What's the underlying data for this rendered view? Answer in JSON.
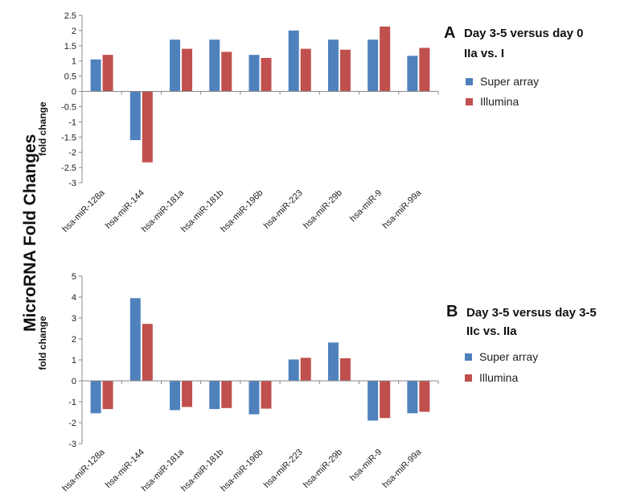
{
  "figure": {
    "side_title": "MicroRNA  Fold Changes"
  },
  "colors": {
    "series_a": "#4F81BD",
    "series_b": "#C0504D"
  },
  "chart_data": [
    {
      "type": "bar",
      "panel": "A",
      "title_line1": "Day 3-5 versus day 0",
      "title_line2": "IIa vs. I",
      "ylabel": "fold change",
      "xlabel": "",
      "categories": [
        "hsa-miR-128a",
        "hsa-miR-144",
        "hsa-miR-181a",
        "hsa-miR-181b",
        "hsa-miR-196b",
        "hsa-miR-223",
        "hsa-miR-29b",
        "hsa-miR-9",
        "hsa-miR-99a"
      ],
      "series": [
        {
          "name": "Super array",
          "color": "#4F81BD",
          "values": [
            1.05,
            -1.6,
            1.7,
            1.7,
            1.2,
            2.0,
            1.7,
            1.7,
            1.17
          ]
        },
        {
          "name": "Illumina",
          "color": "#C0504D",
          "values": [
            1.2,
            -2.33,
            1.4,
            1.3,
            1.1,
            1.4,
            1.37,
            2.13,
            1.43
          ]
        }
      ],
      "ylim": [
        -3,
        2.5
      ],
      "yticks": [
        "2.5",
        "2",
        "1.5",
        "1",
        "0.5",
        "0",
        "-0.5",
        "-1",
        "-1.5",
        "-2",
        "-2.5",
        "-3"
      ],
      "grid": false,
      "legend": "right"
    },
    {
      "type": "bar",
      "panel": "B",
      "title_line1": "Day 3-5 versus day 3-5",
      "title_line2": "IIc vs. IIa",
      "ylabel": "fold change",
      "xlabel": "",
      "categories": [
        "hsa-miR-128a",
        "hsa-miR-144",
        "hsa-miR-181a",
        "hsa-miR-181b",
        "hsa-miR-196b",
        "hsa-miR-223",
        "hsa-miR-29b",
        "hsa-miR-9",
        "hsa-miR-99a"
      ],
      "series": [
        {
          "name": "Super array",
          "color": "#4F81BD",
          "values": [
            -1.55,
            3.95,
            -1.4,
            -1.35,
            -1.6,
            1.02,
            1.83,
            -1.9,
            -1.55
          ]
        },
        {
          "name": "Illumina",
          "color": "#C0504D",
          "values": [
            -1.35,
            2.72,
            -1.25,
            -1.3,
            -1.33,
            1.1,
            1.08,
            -1.78,
            -1.48
          ]
        }
      ],
      "ylim": [
        -3,
        5
      ],
      "yticks": [
        "5",
        "4",
        "3",
        "2",
        "1",
        "0",
        "-1",
        "-2",
        "-3"
      ],
      "grid": false,
      "legend": "right"
    }
  ]
}
